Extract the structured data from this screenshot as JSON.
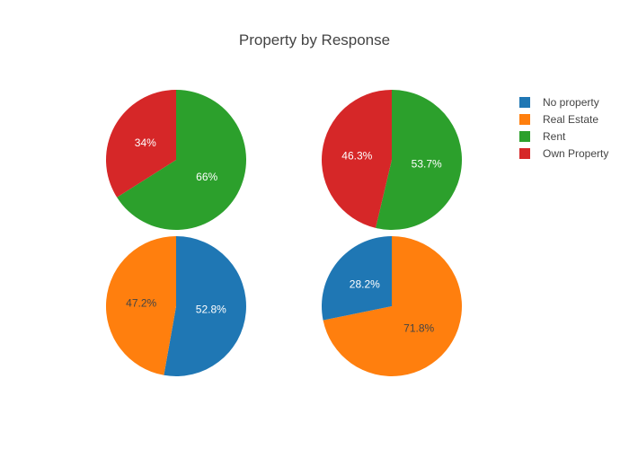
{
  "chart_data": {
    "type": "pie",
    "title": "Property by Response",
    "legend": {
      "placement": "top-right",
      "items": [
        {
          "label": "No property",
          "color": "#1f77b4"
        },
        {
          "label": "Real Estate",
          "color": "#ff7f0e"
        },
        {
          "label": "Rent",
          "color": "#2ca02c"
        },
        {
          "label": "Own Property",
          "color": "#d62728"
        }
      ]
    },
    "pies": [
      {
        "slices": [
          {
            "category": "Rent",
            "value": 66,
            "label": "66%",
            "color": "#2ca02c"
          },
          {
            "category": "Own Property",
            "value": 34,
            "label": "34%",
            "color": "#d62728"
          }
        ]
      },
      {
        "slices": [
          {
            "category": "Rent",
            "value": 53.7,
            "label": "53.7%",
            "color": "#2ca02c"
          },
          {
            "category": "Own Property",
            "value": 46.3,
            "label": "46.3%",
            "color": "#d62728"
          }
        ]
      },
      {
        "slices": [
          {
            "category": "No property",
            "value": 52.8,
            "label": "52.8%",
            "color": "#1f77b4"
          },
          {
            "category": "Real Estate",
            "value": 47.2,
            "label": "47.2%",
            "color": "#ff7f0e"
          }
        ]
      },
      {
        "slices": [
          {
            "category": "Real Estate",
            "value": 71.8,
            "label": "71.8%",
            "color": "#ff7f0e"
          },
          {
            "category": "No property",
            "value": 28.2,
            "label": "28.2%",
            "color": "#1f77b4"
          }
        ]
      }
    ]
  }
}
